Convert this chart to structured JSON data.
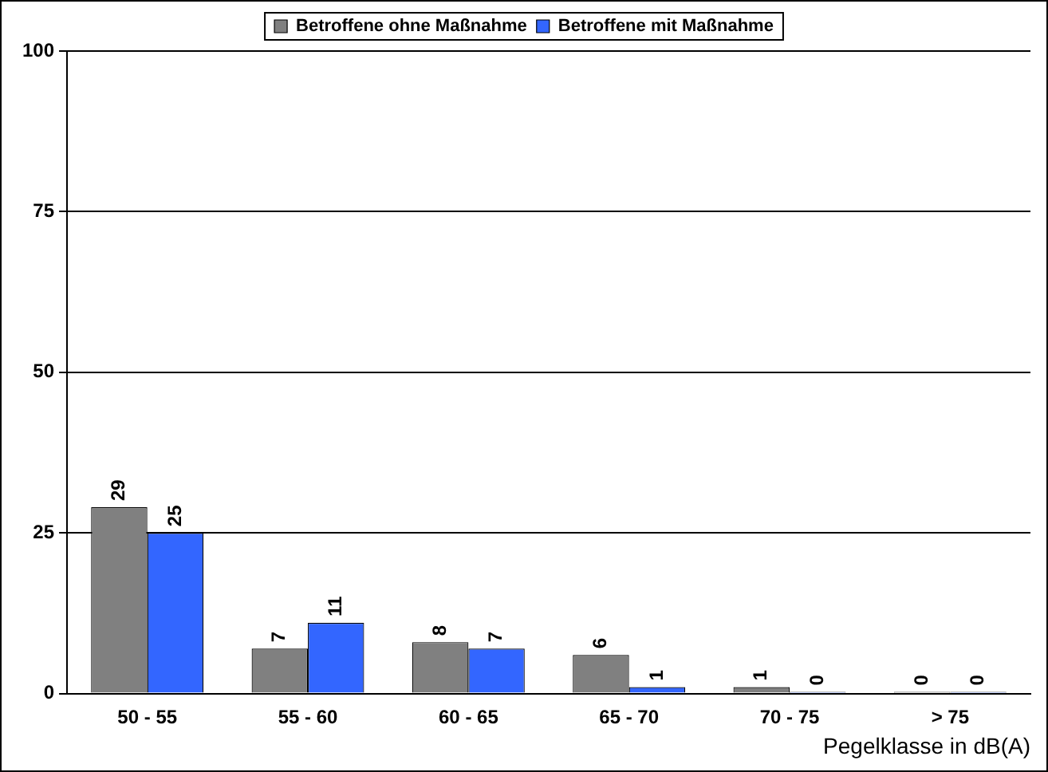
{
  "chart_data": {
    "type": "bar",
    "xlabel": "Pegelklasse in dB(A)",
    "categories": [
      "50 - 55",
      "55 - 60",
      "60 - 65",
      "65 - 70",
      "70 - 75",
      "> 75"
    ],
    "series": [
      {
        "name": "Betroffene ohne Maßnahme",
        "color": "#808080",
        "values": [
          29,
          7,
          8,
          6,
          1,
          0
        ]
      },
      {
        "name": "Betroffene mit Maßnahme",
        "color": "#3366ff",
        "values": [
          25,
          11,
          7,
          1,
          0,
          0
        ]
      }
    ],
    "ylim": [
      0,
      100
    ],
    "yticks": [
      0,
      25,
      50,
      75,
      100
    ],
    "grid": "y",
    "legend": "top",
    "data_labels": true
  }
}
